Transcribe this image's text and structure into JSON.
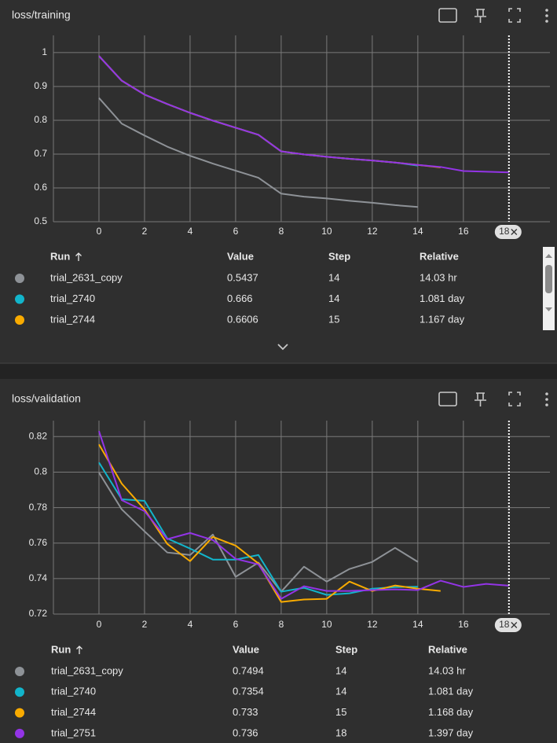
{
  "chart_data": [
    {
      "type": "line",
      "title": "loss/training",
      "x": [
        0,
        1,
        2,
        3,
        4,
        5,
        6,
        7,
        8,
        9,
        10,
        11,
        12,
        13,
        14,
        15,
        16,
        17,
        18
      ],
      "series": [
        {
          "name": "trial_2631_copy",
          "color": "#8e9297",
          "values": [
            0.866,
            0.79,
            0.755,
            0.722,
            0.695,
            0.672,
            0.651,
            0.63,
            0.583,
            0.574,
            0.569,
            0.562,
            0.556,
            0.549,
            0.5437,
            null,
            null,
            null,
            null
          ]
        },
        {
          "name": "trial_2740",
          "color": "#12b5cb",
          "values": [
            0.99,
            0.917,
            0.876,
            0.848,
            0.822,
            0.799,
            0.778,
            0.757,
            0.708,
            0.699,
            0.692,
            0.686,
            0.681,
            0.675,
            0.666,
            null,
            null,
            null,
            null
          ]
        },
        {
          "name": "trial_2744",
          "color": "#f9ab00",
          "values": [
            0.99,
            0.917,
            0.876,
            0.848,
            0.822,
            0.799,
            0.778,
            0.757,
            0.708,
            0.699,
            0.692,
            0.686,
            0.681,
            0.675,
            0.668,
            0.6606,
            null,
            null,
            null
          ]
        },
        {
          "name": "trial_2751",
          "color": "#9334e6",
          "values": [
            0.99,
            0.917,
            0.876,
            0.848,
            0.822,
            0.799,
            0.778,
            0.757,
            0.708,
            0.699,
            0.692,
            0.686,
            0.681,
            0.675,
            0.668,
            0.662,
            0.65,
            0.648,
            0.646
          ]
        }
      ],
      "xlim": [
        -2,
        19.8
      ],
      "xticks": [
        0,
        2,
        4,
        6,
        8,
        10,
        12,
        14,
        16
      ],
      "ylim": [
        0.5,
        1.051
      ],
      "yticks": [
        0.5,
        0.6,
        0.7,
        0.8,
        0.9,
        1
      ],
      "grid": true,
      "marker_step": 18
    },
    {
      "type": "line",
      "title": "loss/validation",
      "x": [
        0,
        1,
        2,
        3,
        4,
        5,
        6,
        7,
        8,
        9,
        10,
        11,
        12,
        13,
        14,
        15,
        16,
        17,
        18
      ],
      "series": [
        {
          "name": "trial_2631_copy",
          "color": "#8e9297",
          "values": [
            0.7997,
            0.779,
            0.7666,
            0.7547,
            0.7533,
            0.7648,
            0.741,
            0.749,
            0.7326,
            0.7467,
            0.7383,
            0.7454,
            0.7494,
            0.7573,
            0.7494,
            null,
            null,
            null,
            null
          ]
        },
        {
          "name": "trial_2740",
          "color": "#12b5cb",
          "values": [
            0.8054,
            0.7847,
            0.7838,
            0.7626,
            0.7569,
            0.7507,
            0.7507,
            0.7533,
            0.7326,
            0.7348,
            0.7308,
            0.7317,
            0.7343,
            0.7352,
            0.7354,
            null,
            null,
            null,
            null
          ]
        },
        {
          "name": "trial_2744",
          "color": "#f9ab00",
          "values": [
            0.8156,
            0.7935,
            0.779,
            0.7595,
            0.7498,
            0.7635,
            0.7586,
            0.7485,
            0.7268,
            0.7282,
            0.7286,
            0.7383,
            0.733,
            0.7361,
            0.7343,
            0.733,
            null,
            null,
            null
          ]
        },
        {
          "name": "trial_2751",
          "color": "#9334e6",
          "values": [
            0.8231,
            0.7842,
            0.778,
            0.7622,
            0.7657,
            0.7617,
            0.7511,
            0.748,
            0.7286,
            0.7357,
            0.733,
            0.733,
            0.7335,
            0.7339,
            0.7335,
            0.7388,
            0.7353,
            0.737,
            0.736
          ]
        }
      ],
      "xlim": [
        -2,
        19.8
      ],
      "xticks": [
        0,
        2,
        4,
        6,
        8,
        10,
        12,
        14,
        16
      ],
      "ylim": [
        0.72,
        0.829
      ],
      "yticks": [
        0.72,
        0.74,
        0.76,
        0.78,
        0.8,
        0.82
      ],
      "grid": true,
      "marker_step": 18
    }
  ],
  "tables": [
    {
      "columns": [
        "Run",
        "Value",
        "Step",
        "Relative"
      ],
      "rows": [
        [
          "trial_2631_copy",
          "0.5437",
          "14",
          "14.03 hr"
        ],
        [
          "trial_2740",
          "0.666",
          "14",
          "1.081 day"
        ],
        [
          "trial_2744",
          "0.6606",
          "15",
          "1.167 day"
        ]
      ]
    },
    {
      "columns": [
        "Run",
        "Value",
        "Step",
        "Relative"
      ],
      "rows": [
        [
          "trial_2631_copy",
          "0.7494",
          "14",
          "14.03 hr"
        ],
        [
          "trial_2740",
          "0.7354",
          "14",
          "1.081 day"
        ],
        [
          "trial_2744",
          "0.733",
          "15",
          "1.168 day"
        ],
        [
          "trial_2751",
          "0.736",
          "18",
          "1.397 day"
        ]
      ]
    }
  ]
}
